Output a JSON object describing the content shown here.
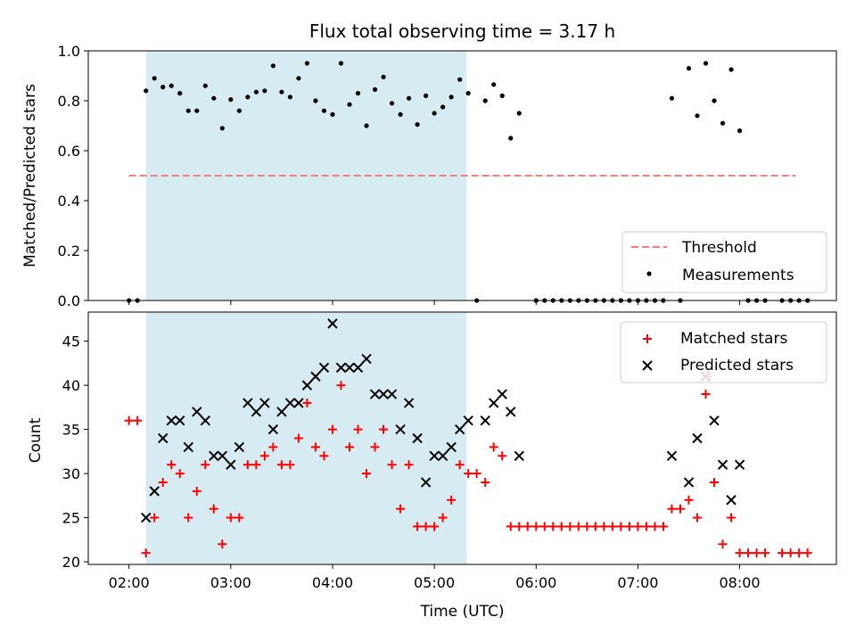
{
  "title": "Flux total observing time = 3.17 h",
  "colors": {
    "shade": "#add8e6",
    "threshold": "#f08080",
    "measurements": "#000000",
    "matched": "#ff0000",
    "predicted": "#000000"
  },
  "chart_data": [
    {
      "type": "scatter",
      "panel": "top",
      "ylabel": "Matched/Predicted stars",
      "xlabel": "",
      "ylim": [
        0,
        1.0
      ],
      "yticks": [
        "0.0",
        "0.2",
        "0.4",
        "0.6",
        "0.8",
        "1.0"
      ],
      "xrange_hours": [
        1.6,
        8.95
      ],
      "shaded_span": [
        "02:10",
        "05:19"
      ],
      "legend": {
        "placement": "lower right",
        "entries": [
          "Threshold",
          "Measurements"
        ]
      },
      "threshold": {
        "name": "Threshold",
        "value": 0.5,
        "x_start": "02:00",
        "x_end": "08:33"
      },
      "series": [
        {
          "name": "Measurements",
          "points": [
            [
              "02:00",
              0.0
            ],
            [
              "02:05",
              0.0
            ],
            [
              "02:10",
              0.84
            ],
            [
              "02:15",
              0.89
            ],
            [
              "02:20",
              0.855
            ],
            [
              "02:25",
              0.86
            ],
            [
              "02:30",
              0.83
            ],
            [
              "02:35",
              0.76
            ],
            [
              "02:40",
              0.76
            ],
            [
              "02:45",
              0.86
            ],
            [
              "02:50",
              0.81
            ],
            [
              "02:55",
              0.69
            ],
            [
              "03:00",
              0.805
            ],
            [
              "03:05",
              0.76
            ],
            [
              "03:10",
              0.815
            ],
            [
              "03:15",
              0.835
            ],
            [
              "03:20",
              0.84
            ],
            [
              "03:25",
              0.94
            ],
            [
              "03:30",
              0.835
            ],
            [
              "03:35",
              0.815
            ],
            [
              "03:40",
              0.89
            ],
            [
              "03:45",
              0.95
            ],
            [
              "03:50",
              0.8
            ],
            [
              "03:55",
              0.76
            ],
            [
              "04:00",
              0.745
            ],
            [
              "04:05",
              0.95
            ],
            [
              "04:10",
              0.785
            ],
            [
              "04:15",
              0.83
            ],
            [
              "04:20",
              0.7
            ],
            [
              "04:25",
              0.845
            ],
            [
              "04:30",
              0.895
            ],
            [
              "04:35",
              0.79
            ],
            [
              "04:40",
              0.745
            ],
            [
              "04:45",
              0.81
            ],
            [
              "04:50",
              0.705
            ],
            [
              "04:55",
              0.82
            ],
            [
              "05:00",
              0.75
            ],
            [
              "05:05",
              0.775
            ],
            [
              "05:10",
              0.815
            ],
            [
              "05:15",
              0.885
            ],
            [
              "05:20",
              0.83
            ],
            [
              "05:25",
              0.0
            ],
            [
              "05:30",
              0.8
            ],
            [
              "05:35",
              0.865
            ],
            [
              "05:40",
              0.82
            ],
            [
              "05:45",
              0.65
            ],
            [
              "05:50",
              0.75
            ],
            [
              "06:00",
              0.0
            ],
            [
              "06:05",
              0.0
            ],
            [
              "06:10",
              0.0
            ],
            [
              "06:15",
              0.0
            ],
            [
              "06:20",
              0.0
            ],
            [
              "06:25",
              0.0
            ],
            [
              "06:30",
              0.0
            ],
            [
              "06:35",
              0.0
            ],
            [
              "06:40",
              0.0
            ],
            [
              "06:45",
              0.0
            ],
            [
              "06:50",
              0.0
            ],
            [
              "06:55",
              0.0
            ],
            [
              "07:00",
              0.0
            ],
            [
              "07:05",
              0.0
            ],
            [
              "07:10",
              0.0
            ],
            [
              "07:15",
              0.0
            ],
            [
              "07:20",
              0.81
            ],
            [
              "07:25",
              0.0
            ],
            [
              "07:30",
              0.93
            ],
            [
              "07:35",
              0.74
            ],
            [
              "07:40",
              0.95
            ],
            [
              "07:45",
              0.8
            ],
            [
              "07:50",
              0.71
            ],
            [
              "07:55",
              0.925
            ],
            [
              "08:00",
              0.68
            ],
            [
              "08:05",
              0.0
            ],
            [
              "08:10",
              0.0
            ],
            [
              "08:15",
              0.0
            ],
            [
              "08:25",
              0.0
            ],
            [
              "08:30",
              0.0
            ],
            [
              "08:35",
              0.0
            ],
            [
              "08:40",
              0.0
            ]
          ]
        }
      ]
    },
    {
      "type": "scatter",
      "panel": "bottom",
      "ylabel": "Count",
      "xlabel": "Time (UTC)",
      "ylim": [
        19.7,
        48.3
      ],
      "yticks": [
        "20",
        "25",
        "30",
        "35",
        "40",
        "45"
      ],
      "xticks": [
        "02:00",
        "03:00",
        "04:00",
        "05:00",
        "06:00",
        "07:00",
        "08:00"
      ],
      "xrange_hours": [
        1.6,
        8.95
      ],
      "shaded_span": [
        "02:10",
        "05:19"
      ],
      "legend": {
        "placement": "upper right",
        "entries": [
          "Matched stars",
          "Predicted stars"
        ]
      },
      "series": [
        {
          "name": "Matched stars",
          "marker": "+",
          "points": [
            [
              "02:00",
              36
            ],
            [
              "02:05",
              36
            ],
            [
              "02:10",
              21
            ],
            [
              "02:15",
              25
            ],
            [
              "02:20",
              29
            ],
            [
              "02:25",
              31
            ],
            [
              "02:30",
              30
            ],
            [
              "02:35",
              25
            ],
            [
              "02:40",
              28
            ],
            [
              "02:45",
              31
            ],
            [
              "02:50",
              26
            ],
            [
              "02:55",
              22
            ],
            [
              "03:00",
              25
            ],
            [
              "03:05",
              25
            ],
            [
              "03:10",
              31
            ],
            [
              "03:15",
              31
            ],
            [
              "03:20",
              32
            ],
            [
              "03:25",
              33
            ],
            [
              "03:30",
              31
            ],
            [
              "03:35",
              31
            ],
            [
              "03:40",
              34
            ],
            [
              "03:45",
              38
            ],
            [
              "03:50",
              33
            ],
            [
              "03:55",
              32
            ],
            [
              "04:00",
              35
            ],
            [
              "04:05",
              40
            ],
            [
              "04:10",
              33
            ],
            [
              "04:15",
              35
            ],
            [
              "04:20",
              30
            ],
            [
              "04:25",
              33
            ],
            [
              "04:30",
              35
            ],
            [
              "04:35",
              31
            ],
            [
              "04:40",
              26
            ],
            [
              "04:45",
              31
            ],
            [
              "04:50",
              24
            ],
            [
              "04:55",
              24
            ],
            [
              "05:00",
              24
            ],
            [
              "05:05",
              25
            ],
            [
              "05:10",
              27
            ],
            [
              "05:15",
              31
            ],
            [
              "05:20",
              30
            ],
            [
              "05:25",
              30
            ],
            [
              "05:30",
              29
            ],
            [
              "05:35",
              33
            ],
            [
              "05:40",
              32
            ],
            [
              "05:45",
              24
            ],
            [
              "05:50",
              24
            ],
            [
              "05:55",
              24
            ],
            [
              "06:00",
              24
            ],
            [
              "06:05",
              24
            ],
            [
              "06:10",
              24
            ],
            [
              "06:15",
              24
            ],
            [
              "06:20",
              24
            ],
            [
              "06:25",
              24
            ],
            [
              "06:30",
              24
            ],
            [
              "06:35",
              24
            ],
            [
              "06:40",
              24
            ],
            [
              "06:45",
              24
            ],
            [
              "06:50",
              24
            ],
            [
              "06:55",
              24
            ],
            [
              "07:00",
              24
            ],
            [
              "07:05",
              24
            ],
            [
              "07:10",
              24
            ],
            [
              "07:15",
              24
            ],
            [
              "07:20",
              26
            ],
            [
              "07:25",
              26
            ],
            [
              "07:30",
              27
            ],
            [
              "07:35",
              25
            ],
            [
              "07:40",
              39
            ],
            [
              "07:41",
              41
            ],
            [
              "07:45",
              29
            ],
            [
              "07:50",
              22
            ],
            [
              "07:55",
              25
            ],
            [
              "08:00",
              21
            ],
            [
              "08:05",
              21
            ],
            [
              "08:10",
              21
            ],
            [
              "08:15",
              21
            ],
            [
              "08:25",
              21
            ],
            [
              "08:30",
              21
            ],
            [
              "08:35",
              21
            ],
            [
              "08:40",
              21
            ]
          ]
        },
        {
          "name": "Predicted stars",
          "marker": "x",
          "points": [
            [
              "02:10",
              25
            ],
            [
              "02:15",
              28
            ],
            [
              "02:20",
              34
            ],
            [
              "02:25",
              36
            ],
            [
              "02:30",
              36
            ],
            [
              "02:35",
              33
            ],
            [
              "02:40",
              37
            ],
            [
              "02:45",
              36
            ],
            [
              "02:50",
              32
            ],
            [
              "02:55",
              32
            ],
            [
              "03:00",
              31
            ],
            [
              "03:05",
              33
            ],
            [
              "03:10",
              38
            ],
            [
              "03:15",
              37
            ],
            [
              "03:20",
              38
            ],
            [
              "03:25",
              35
            ],
            [
              "03:30",
              37
            ],
            [
              "03:35",
              38
            ],
            [
              "03:40",
              38
            ],
            [
              "03:45",
              40
            ],
            [
              "03:50",
              41
            ],
            [
              "03:55",
              42
            ],
            [
              "04:00",
              47
            ],
            [
              "04:05",
              42
            ],
            [
              "04:10",
              42
            ],
            [
              "04:15",
              42
            ],
            [
              "04:20",
              43
            ],
            [
              "04:25",
              39
            ],
            [
              "04:30",
              39
            ],
            [
              "04:35",
              39
            ],
            [
              "04:40",
              35
            ],
            [
              "04:45",
              38
            ],
            [
              "04:50",
              34
            ],
            [
              "04:55",
              29
            ],
            [
              "05:00",
              32
            ],
            [
              "05:05",
              32
            ],
            [
              "05:10",
              33
            ],
            [
              "05:15",
              35
            ],
            [
              "05:20",
              36
            ],
            [
              "05:30",
              36
            ],
            [
              "05:35",
              38
            ],
            [
              "05:40",
              39
            ],
            [
              "05:45",
              37
            ],
            [
              "05:50",
              32
            ],
            [
              "07:20",
              32
            ],
            [
              "07:30",
              29
            ],
            [
              "07:35",
              34
            ],
            [
              "07:40",
              41
            ],
            [
              "07:45",
              36
            ],
            [
              "07:50",
              31
            ],
            [
              "07:55",
              27
            ],
            [
              "08:00",
              31
            ]
          ]
        }
      ]
    }
  ]
}
